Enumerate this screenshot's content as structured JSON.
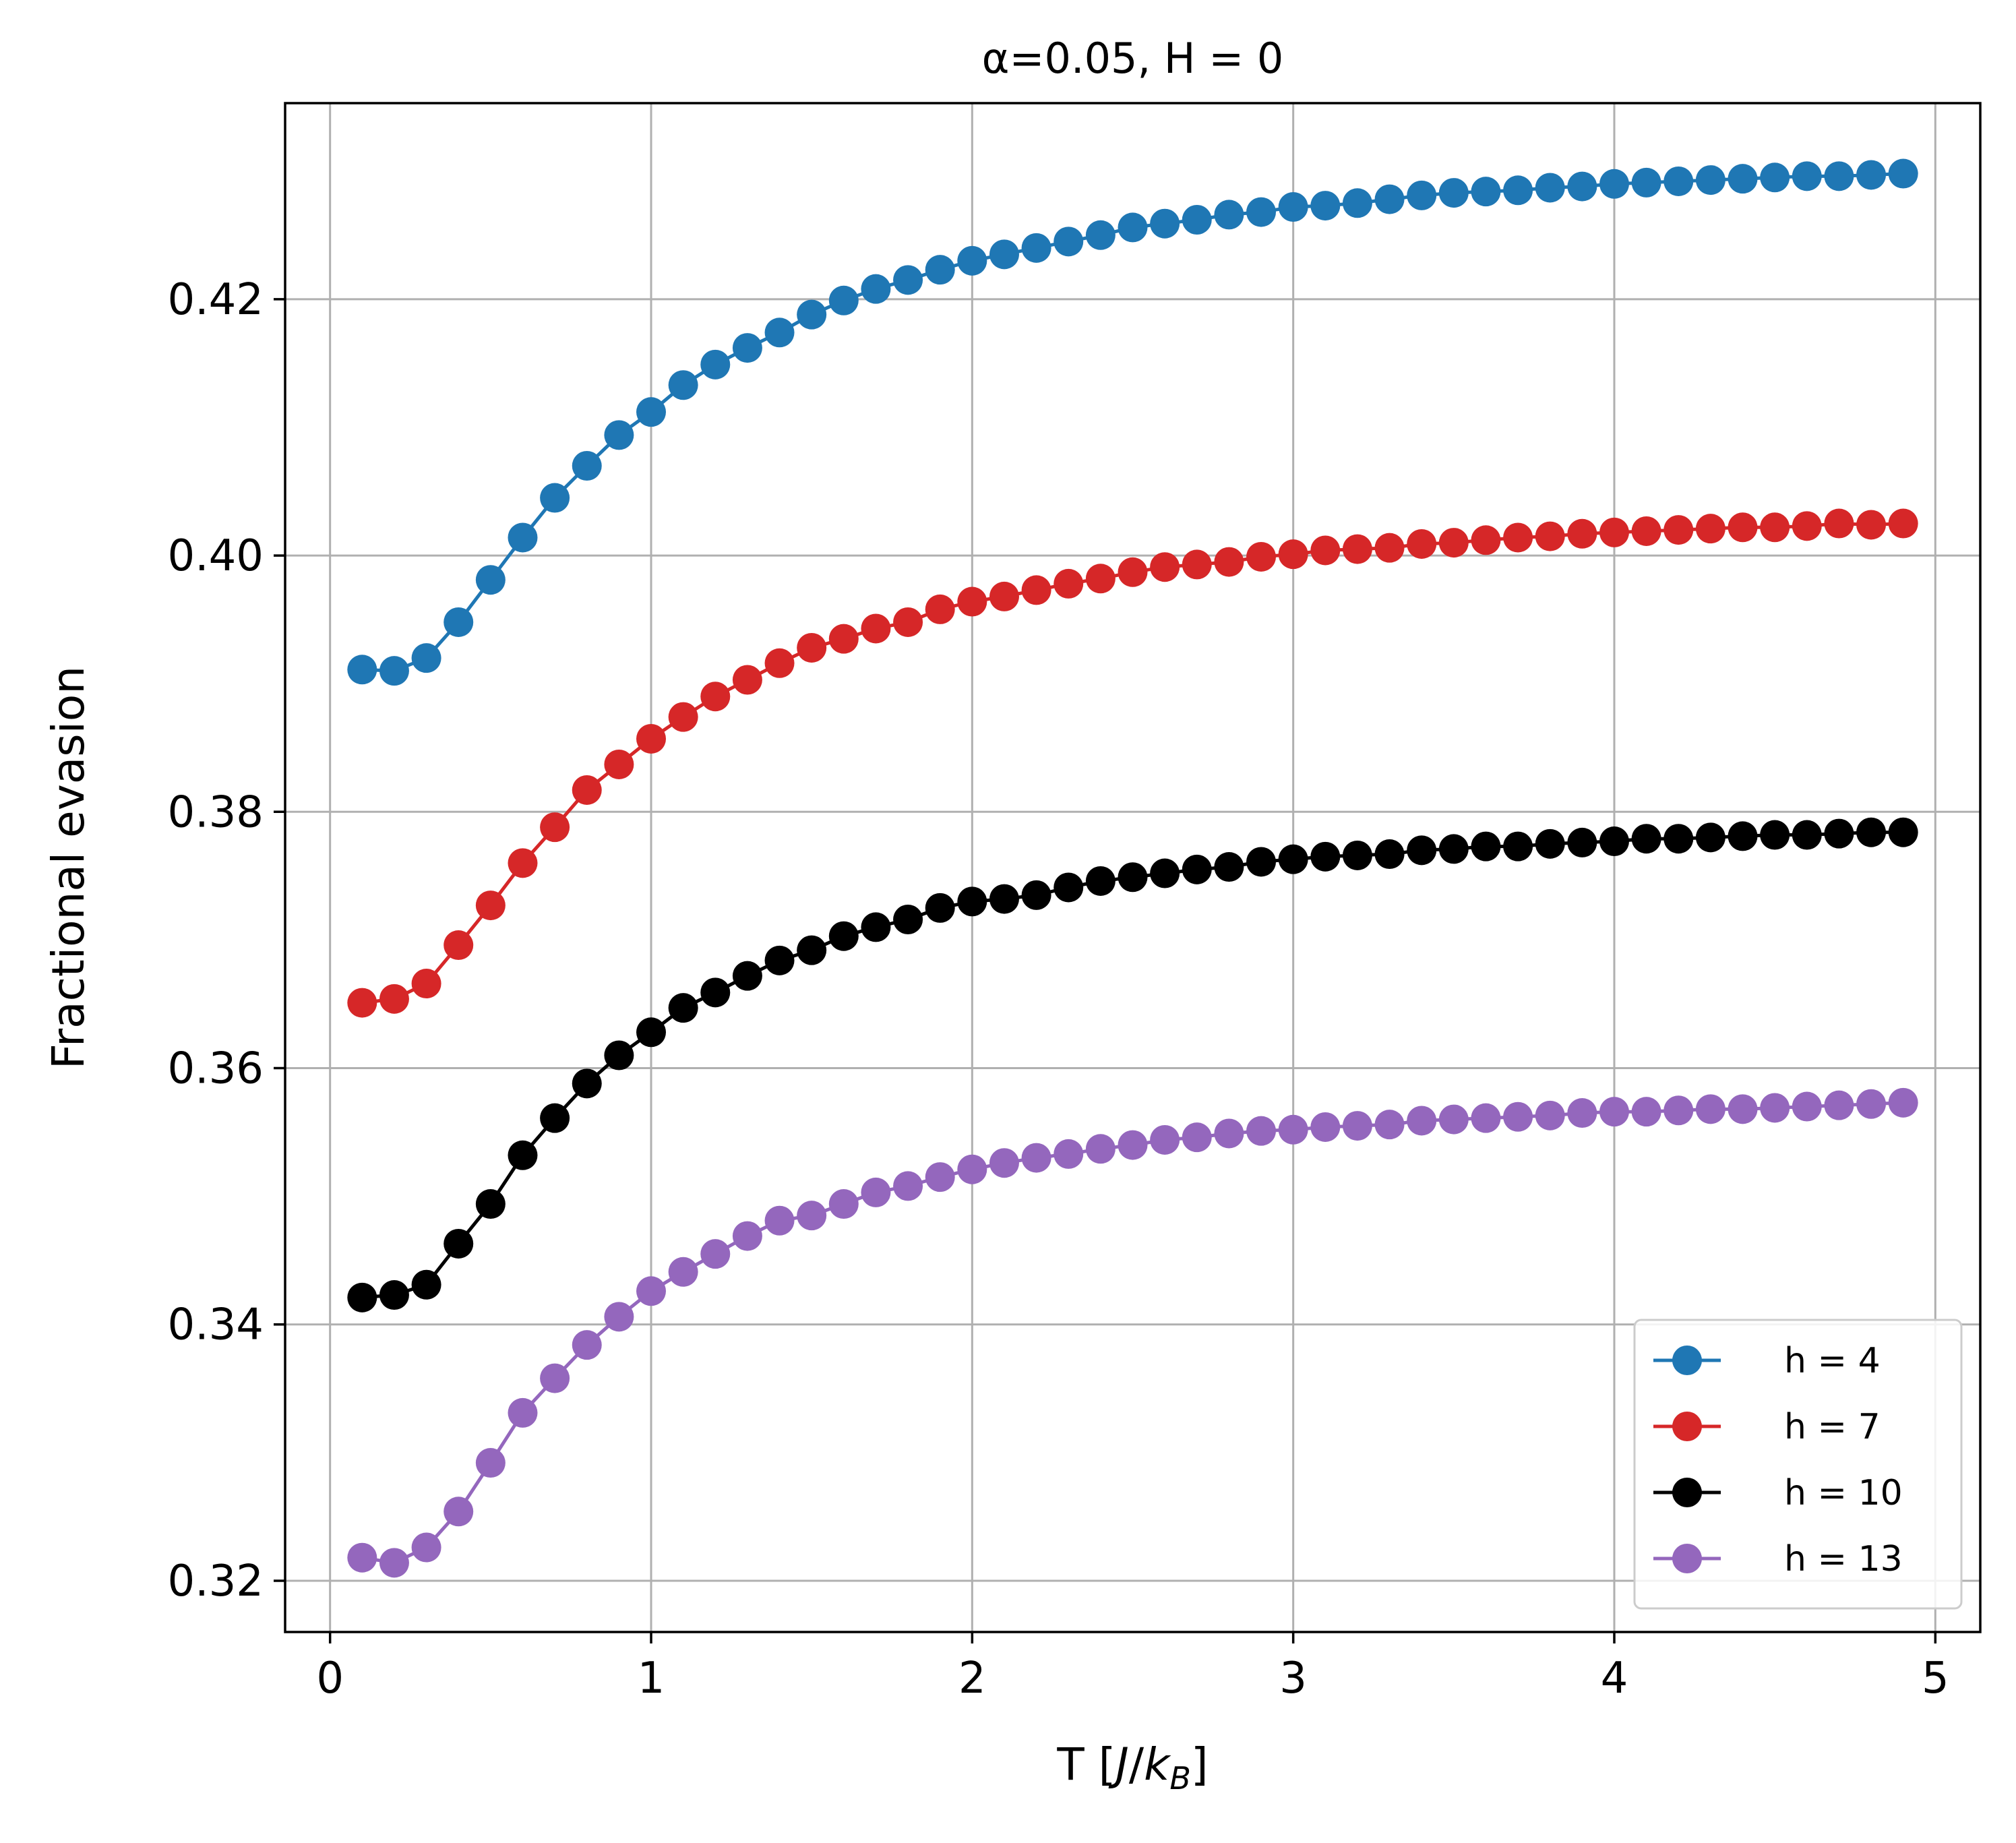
{
  "chart_data": {
    "type": "line",
    "title": "α=0.05, H = 0",
    "xlabel": "T [J/k_B]",
    "xlabel_parts": {
      "prefix": "T [",
      "J": "J",
      "slash": "/",
      "k": "k",
      "sub": "B",
      "suffix": "]"
    },
    "ylabel": "Fractional evasion",
    "xlim": [
      -0.14,
      5.14
    ],
    "ylim": [
      0.316,
      0.4353
    ],
    "xticks": [
      0,
      1,
      2,
      3,
      4,
      5
    ],
    "xtick_labels": [
      "0",
      "1",
      "2",
      "3",
      "4",
      "5"
    ],
    "yticks": [
      0.32,
      0.34,
      0.36,
      0.38,
      0.4,
      0.42
    ],
    "ytick_labels": [
      "0.32",
      "0.34",
      "0.36",
      "0.38",
      "0.40",
      "0.42"
    ],
    "grid": true,
    "legend_position": "lower-right",
    "x": [
      0.1,
      0.2,
      0.3,
      0.4,
      0.5,
      0.6,
      0.7,
      0.8,
      0.9,
      1.0,
      1.1,
      1.2,
      1.3,
      1.4,
      1.5,
      1.6,
      1.7,
      1.8,
      1.9,
      2.0,
      2.1,
      2.2,
      2.3,
      2.4,
      2.5,
      2.6,
      2.7,
      2.8,
      2.9,
      3.0,
      3.1,
      3.2,
      3.3,
      3.4,
      3.5,
      3.6,
      3.7,
      3.8,
      3.9,
      4.0,
      4.1,
      4.2,
      4.3,
      4.4,
      4.5,
      4.6,
      4.7,
      4.8,
      4.9
    ],
    "series": [
      {
        "name": "h = 4",
        "color": "#1f77b4",
        "values": [
          0.3911,
          0.391,
          0.392,
          0.3948,
          0.3981,
          0.4014,
          0.4045,
          0.407,
          0.4094,
          0.4112,
          0.4133,
          0.4149,
          0.4162,
          0.4174,
          0.4188,
          0.4199,
          0.4208,
          0.4215,
          0.4223,
          0.423,
          0.4235,
          0.424,
          0.4245,
          0.425,
          0.4256,
          0.4259,
          0.4262,
          0.4266,
          0.4268,
          0.4272,
          0.4273,
          0.4275,
          0.4278,
          0.4281,
          0.4283,
          0.4284,
          0.4285,
          0.4287,
          0.4288,
          0.429,
          0.4291,
          0.4292,
          0.4293,
          0.4294,
          0.4295,
          0.4296,
          0.4296,
          0.4297,
          0.4298
        ]
      },
      {
        "name": "h = 7",
        "color": "#d62728",
        "values": [
          0.3651,
          0.3654,
          0.3666,
          0.3696,
          0.3727,
          0.376,
          0.3788,
          0.3817,
          0.3837,
          0.3857,
          0.3874,
          0.389,
          0.3903,
          0.3916,
          0.3928,
          0.3935,
          0.3943,
          0.3948,
          0.3958,
          0.3964,
          0.3968,
          0.3973,
          0.3978,
          0.3982,
          0.3987,
          0.3991,
          0.3993,
          0.3995,
          0.3999,
          0.4001,
          0.4004,
          0.4005,
          0.4006,
          0.4009,
          0.401,
          0.4012,
          0.4014,
          0.4015,
          0.4017,
          0.4018,
          0.4019,
          0.402,
          0.4021,
          0.4022,
          0.4022,
          0.4023,
          0.4025,
          0.4024,
          0.4025
        ]
      },
      {
        "name": "h = 10",
        "color": "#000000",
        "values": [
          0.3421,
          0.3423,
          0.3431,
          0.3463,
          0.3494,
          0.3532,
          0.3561,
          0.3588,
          0.361,
          0.3628,
          0.3647,
          0.3659,
          0.3672,
          0.3684,
          0.3692,
          0.3703,
          0.371,
          0.3716,
          0.3725,
          0.373,
          0.3732,
          0.3735,
          0.3741,
          0.3746,
          0.3749,
          0.3752,
          0.3755,
          0.3757,
          0.3761,
          0.3763,
          0.3765,
          0.3766,
          0.3767,
          0.377,
          0.3771,
          0.3773,
          0.3773,
          0.3775,
          0.3776,
          0.3777,
          0.3779,
          0.3779,
          0.378,
          0.3781,
          0.3782,
          0.3782,
          0.3783,
          0.3784,
          0.3784
        ]
      },
      {
        "name": "h = 13",
        "color": "#9467bd",
        "values": [
          0.3218,
          0.3214,
          0.3226,
          0.3254,
          0.3292,
          0.3331,
          0.3358,
          0.3384,
          0.3406,
          0.3426,
          0.3441,
          0.3455,
          0.3469,
          0.3481,
          0.3485,
          0.3494,
          0.3503,
          0.3508,
          0.3515,
          0.3521,
          0.3526,
          0.353,
          0.3533,
          0.3537,
          0.354,
          0.3544,
          0.3546,
          0.3549,
          0.3551,
          0.3552,
          0.3554,
          0.3555,
          0.3556,
          0.3559,
          0.356,
          0.3561,
          0.3562,
          0.3563,
          0.3565,
          0.3566,
          0.3566,
          0.3567,
          0.3568,
          0.3568,
          0.3569,
          0.357,
          0.3571,
          0.3572,
          0.3573
        ]
      }
    ]
  }
}
